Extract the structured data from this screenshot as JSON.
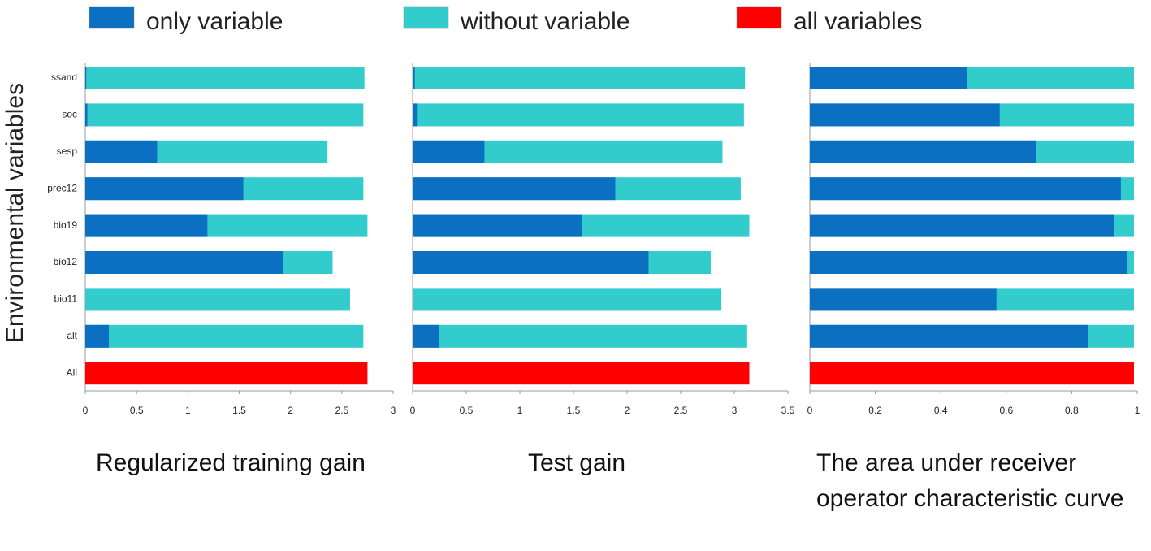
{
  "chart_data": [
    {
      "type": "bar",
      "orientation": "horizontal",
      "title": "Regularized training gain",
      "ylabel": "Environmental variables",
      "categories": [
        "ssand",
        "soc",
        "sesp",
        "prec12",
        "bio19",
        "bio12",
        "bio11",
        "alt",
        "All"
      ],
      "series": [
        {
          "name": "only variable",
          "color": "#0b6fc2",
          "values": [
            0.01,
            0.02,
            0.7,
            1.54,
            1.19,
            1.93,
            0,
            0.23,
            null
          ]
        },
        {
          "name": "without variable",
          "color": "#33cccc",
          "values": [
            2.72,
            2.71,
            2.36,
            2.71,
            2.75,
            2.41,
            2.58,
            2.71,
            null
          ]
        },
        {
          "name": "all variables",
          "color": "#ff0000",
          "values": [
            null,
            null,
            null,
            null,
            null,
            null,
            null,
            null,
            2.75
          ]
        }
      ],
      "xlim": [
        0,
        3
      ],
      "xticks": [
        0,
        0.5,
        1,
        1.5,
        2,
        2.5,
        3
      ]
    },
    {
      "type": "bar",
      "orientation": "horizontal",
      "title": "Test gain",
      "categories": [
        "ssand",
        "soc",
        "sesp",
        "prec12",
        "bio19",
        "bio12",
        "bio11",
        "alt",
        "All"
      ],
      "series": [
        {
          "name": "only variable",
          "color": "#0b6fc2",
          "values": [
            0.02,
            0.04,
            0.67,
            1.89,
            1.58,
            2.2,
            0,
            0.25,
            null
          ]
        },
        {
          "name": "without variable",
          "color": "#33cccc",
          "values": [
            3.1,
            3.09,
            2.89,
            3.06,
            3.14,
            2.78,
            2.88,
            3.12,
            null
          ]
        },
        {
          "name": "all variables",
          "color": "#ff0000",
          "values": [
            null,
            null,
            null,
            null,
            null,
            null,
            null,
            null,
            3.14
          ]
        }
      ],
      "xlim": [
        0,
        3.5
      ],
      "xticks": [
        0,
        0.5,
        1,
        1.5,
        2,
        2.5,
        3,
        3.5
      ]
    },
    {
      "type": "bar",
      "orientation": "horizontal",
      "title": "The area under receiver operator characteristic curve",
      "categories": [
        "ssand",
        "soc",
        "sesp",
        "prec12",
        "bio19",
        "bio12",
        "bio11",
        "alt",
        "All"
      ],
      "series": [
        {
          "name": "only variable",
          "color": "#0b6fc2",
          "values": [
            0.48,
            0.58,
            0.69,
            0.95,
            0.93,
            0.97,
            0.57,
            0.85,
            null
          ]
        },
        {
          "name": "without variable",
          "color": "#33cccc",
          "values": [
            0.99,
            0.99,
            0.99,
            0.99,
            0.99,
            0.99,
            0.99,
            0.99,
            null
          ]
        },
        {
          "name": "all variables",
          "color": "#ff0000",
          "values": [
            null,
            null,
            null,
            null,
            null,
            null,
            null,
            null,
            0.99
          ]
        }
      ],
      "xlim": [
        0,
        1
      ],
      "xticks": [
        0,
        0.2,
        0.4,
        0.6,
        0.8,
        1
      ]
    }
  ]
}
